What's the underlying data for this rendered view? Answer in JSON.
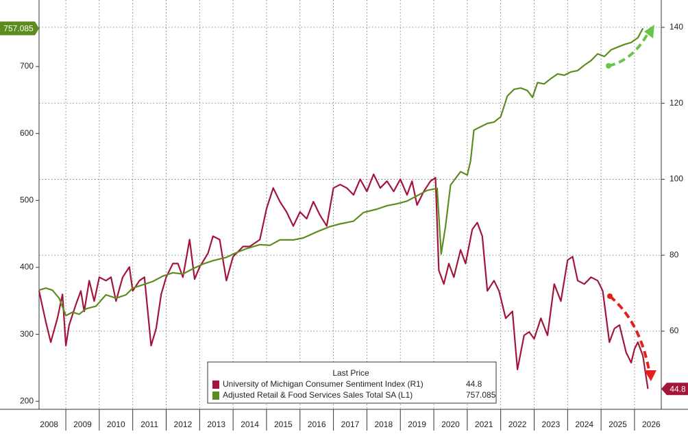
{
  "chart_data": {
    "type": "line",
    "legend_title": "Last Price",
    "grid": true,
    "xlim": [
      2008.2,
      2026.8
    ],
    "xticks": [
      2008,
      2009,
      2010,
      2011,
      2012,
      2013,
      2014,
      2015,
      2016,
      2017,
      2018,
      2019,
      2020,
      2021,
      2022,
      2023,
      2024,
      2025,
      2026
    ],
    "ylim": [
      189,
      799.4
    ],
    "yticks": [
      200,
      300,
      400,
      500,
      600,
      700
    ],
    "y2lim": [
      39.6,
      147.2
    ],
    "y2ticks": [
      60,
      80,
      100,
      120,
      140
    ],
    "series": [
      {
        "name": "University of Michigan Consumer Sentiment Index (R1)",
        "color": "#a3143a",
        "axis": "y2",
        "last": 44.8,
        "x": [
          2008.2,
          2008.4,
          2008.55,
          2008.75,
          2008.9,
          2009.0,
          2009.1,
          2009.3,
          2009.45,
          2009.55,
          2009.7,
          2009.85,
          2010.0,
          2010.2,
          2010.35,
          2010.5,
          2010.7,
          2010.9,
          2011.0,
          2011.2,
          2011.35,
          2011.55,
          2011.7,
          2011.85,
          2012.0,
          2012.2,
          2012.35,
          2012.5,
          2012.7,
          2012.85,
          2013.0,
          2013.25,
          2013.4,
          2013.6,
          2013.8,
          2014.0,
          2014.3,
          2014.5,
          2014.8,
          2015.0,
          2015.2,
          2015.4,
          2015.6,
          2015.8,
          2016.0,
          2016.2,
          2016.4,
          2016.6,
          2016.8,
          2017.0,
          2017.2,
          2017.4,
          2017.6,
          2017.8,
          2018.0,
          2018.2,
          2018.4,
          2018.6,
          2018.8,
          2019.0,
          2019.2,
          2019.35,
          2019.5,
          2019.7,
          2019.9,
          2020.05,
          2020.15,
          2020.3,
          2020.45,
          2020.6,
          2020.8,
          2020.95,
          2021.15,
          2021.3,
          2021.45,
          2021.6,
          2021.8,
          2021.95,
          2022.15,
          2022.35,
          2022.5,
          2022.7,
          2022.85,
          2023.0,
          2023.2,
          2023.4,
          2023.6,
          2023.8,
          2024.0,
          2024.15,
          2024.3,
          2024.5,
          2024.7,
          2024.9,
          2025.05,
          2025.25,
          2025.4,
          2025.55,
          2025.75,
          2025.9,
          2026.0,
          2026.1,
          2026.25,
          2026.4
        ],
        "values": [
          70.6,
          62.5,
          57.1,
          63.4,
          69.7,
          56.2,
          61.6,
          67.0,
          70.6,
          65.2,
          73.3,
          67.9,
          74.2,
          73.3,
          74.2,
          67.9,
          74.2,
          76.9,
          70.6,
          73.3,
          74.2,
          56.2,
          60.7,
          69.7,
          74.2,
          77.8,
          77.8,
          74.2,
          84.1,
          73.7,
          76.9,
          80.5,
          85.0,
          84.1,
          73.3,
          79.6,
          82.3,
          82.3,
          84.1,
          92.3,
          97.7,
          94.1,
          91.4,
          87.7,
          91.4,
          89.6,
          94.1,
          90.5,
          87.7,
          97.7,
          98.6,
          97.7,
          95.9,
          100.0,
          96.8,
          101.3,
          97.7,
          99.5,
          96.8,
          100.0,
          95.9,
          99.5,
          93.2,
          96.8,
          99.5,
          100.4,
          76.0,
          72.4,
          77.8,
          74.2,
          81.4,
          77.8,
          86.8,
          88.6,
          85.0,
          70.6,
          73.3,
          70.6,
          63.4,
          65.2,
          49.9,
          58.9,
          59.8,
          58.0,
          63.4,
          58.9,
          72.4,
          67.9,
          78.7,
          79.6,
          73.3,
          72.4,
          74.2,
          73.3,
          70.6,
          57.1,
          60.7,
          61.6,
          54.4,
          51.7,
          55.3,
          57.1,
          53.5,
          44.8
        ]
      },
      {
        "name": "Adjusted Retail & Food Services Sales Total SA (L1)",
        "color": "#5c8c1e",
        "axis": "y",
        "last": 757.085,
        "x": [
          2008.2,
          2008.4,
          2008.6,
          2008.8,
          2009.0,
          2009.2,
          2009.4,
          2009.6,
          2009.9,
          2010.2,
          2010.5,
          2010.8,
          2011.0,
          2011.3,
          2011.6,
          2011.9,
          2012.2,
          2012.5,
          2012.8,
          2013.1,
          2013.4,
          2013.8,
          2014.1,
          2014.4,
          2014.8,
          2015.1,
          2015.4,
          2015.8,
          2016.1,
          2016.5,
          2016.9,
          2017.2,
          2017.6,
          2017.9,
          2018.3,
          2018.6,
          2018.9,
          2019.2,
          2019.5,
          2019.8,
          2020.1,
          2020.22,
          2020.35,
          2020.5,
          2020.8,
          2021.0,
          2021.1,
          2021.2,
          2021.4,
          2021.6,
          2021.8,
          2022.0,
          2022.2,
          2022.4,
          2022.6,
          2022.8,
          2022.95,
          2023.1,
          2023.3,
          2023.5,
          2023.7,
          2023.9,
          2024.1,
          2024.3,
          2024.5,
          2024.7,
          2024.9,
          2025.1,
          2025.3,
          2025.5,
          2025.7,
          2025.9,
          2026.1,
          2026.25
        ],
        "values": [
          366,
          369,
          366,
          354,
          328,
          333,
          330,
          338,
          342,
          359,
          354,
          359,
          369,
          374,
          379,
          387,
          392,
          390,
          398,
          405,
          410,
          415,
          422,
          428,
          434,
          433,
          441,
          441,
          444,
          453,
          461,
          465,
          469,
          482,
          487,
          492,
          495,
          499,
          507,
          515,
          518,
          420,
          461,
          523,
          543,
          538,
          559,
          605,
          610,
          615,
          617,
          625,
          656,
          666,
          668,
          664,
          654,
          676,
          674,
          682,
          689,
          687,
          692,
          694,
          702,
          709,
          719,
          715,
          725,
          729,
          733,
          736,
          743,
          757.085
        ]
      }
    ]
  }
}
